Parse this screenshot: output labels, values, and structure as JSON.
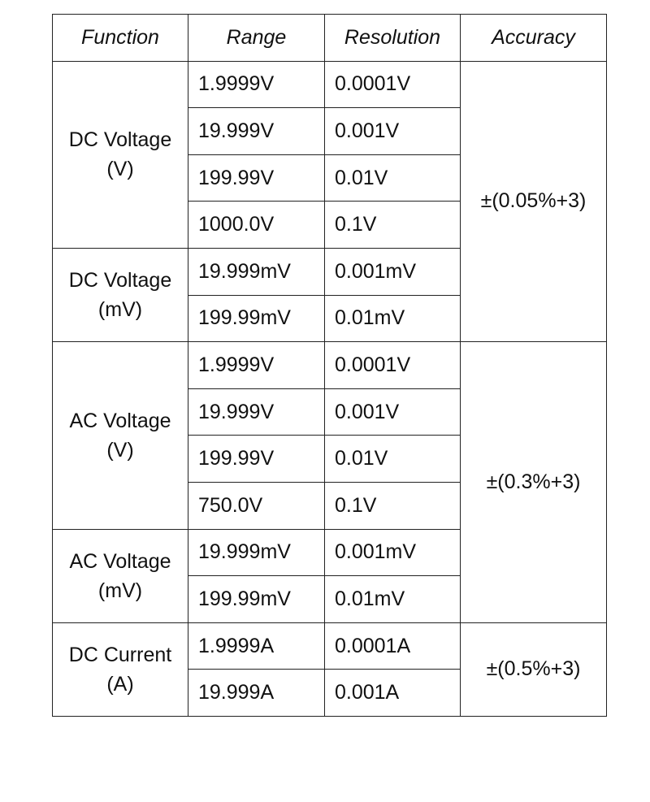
{
  "headers": {
    "function": "Function",
    "range": "Range",
    "resolution": "Resolution",
    "accuracy": "Accuracy"
  },
  "groups": [
    {
      "function_line1": "DC Voltage",
      "function_line2": "(V)",
      "rows": [
        {
          "range": "1.9999V",
          "resolution": "0.0001V"
        },
        {
          "range": "19.999V",
          "resolution": "0.001V"
        },
        {
          "range": "199.99V",
          "resolution": "0.01V"
        },
        {
          "range": "1000.0V",
          "resolution": "0.1V"
        }
      ]
    },
    {
      "function_line1": "DC Voltage",
      "function_line2": "(mV)",
      "rows": [
        {
          "range": "19.999mV",
          "resolution": "0.001mV"
        },
        {
          "range": "199.99mV",
          "resolution": "0.01mV"
        }
      ]
    },
    {
      "function_line1": "AC Voltage",
      "function_line2": "(V)",
      "rows": [
        {
          "range": "1.9999V",
          "resolution": "0.0001V"
        },
        {
          "range": "19.999V",
          "resolution": "0.001V"
        },
        {
          "range": "199.99V",
          "resolution": "0.01V"
        },
        {
          "range": "750.0V",
          "resolution": "0.1V"
        }
      ]
    },
    {
      "function_line1": "AC Voltage",
      "function_line2": "(mV)",
      "rows": [
        {
          "range": "19.999mV",
          "resolution": "0.001mV"
        },
        {
          "range": "199.99mV",
          "resolution": "0.01mV"
        }
      ]
    },
    {
      "function_line1": "DC Current",
      "function_line2": "(A)",
      "rows": [
        {
          "range": "1.9999A",
          "resolution": "0.0001A"
        },
        {
          "range": "19.999A",
          "resolution": "0.001A"
        }
      ]
    }
  ],
  "accuracy": {
    "dc_voltage": "±(0.05%+3)",
    "ac_voltage": "±(0.3%+3)",
    "dc_current": "±(0.5%+3)"
  }
}
